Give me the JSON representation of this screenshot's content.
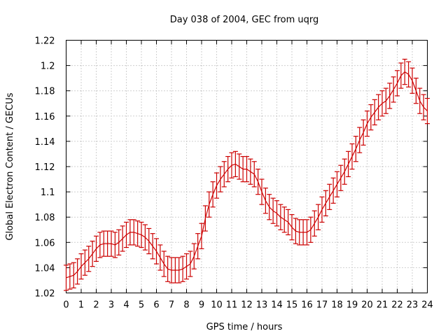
{
  "chart_data": {
    "type": "line",
    "title": "Day 038 of 2004, GEC from uqrg",
    "xlabel": "GPS time / hours",
    "ylabel": "Global Electron Content / GECUs",
    "xlim": [
      0,
      24
    ],
    "ylim": [
      1.02,
      1.22
    ],
    "xticks": [
      "0",
      "1",
      "2",
      "3",
      "4",
      "5",
      "6",
      "7",
      "8",
      "9",
      "10",
      "11",
      "12",
      "13",
      "14",
      "15",
      "16",
      "17",
      "18",
      "19",
      "20",
      "21",
      "22",
      "23",
      "24"
    ],
    "yticks": [
      "1.02",
      "1.04",
      "1.06",
      "1.08",
      "1.1",
      "1.12",
      "1.14",
      "1.16",
      "1.18",
      "1.2",
      "1.22"
    ],
    "grid": true,
    "error_bar": 0.01,
    "color": "#cc0000",
    "series": [
      {
        "x": [
          0,
          0.25,
          0.5,
          0.75,
          1,
          1.25,
          1.5,
          1.75,
          2,
          2.25,
          2.5,
          2.75,
          3,
          3.25,
          3.5,
          3.75,
          4,
          4.25,
          4.5,
          4.75,
          5,
          5.25,
          5.5,
          5.75,
          6,
          6.25,
          6.5,
          6.75,
          7,
          7.25,
          7.5,
          7.75,
          8,
          8.25,
          8.5,
          8.75,
          9,
          9.25,
          9.5,
          9.75,
          10,
          10.25,
          10.5,
          10.75,
          11,
          11.25,
          11.5,
          11.75,
          12,
          12.25,
          12.5,
          12.75,
          13,
          13.25,
          13.5,
          13.75,
          14,
          14.25,
          14.5,
          14.75,
          15,
          15.25,
          15.5,
          15.75,
          16,
          16.25,
          16.5,
          16.75,
          17,
          17.25,
          17.5,
          17.75,
          18,
          18.25,
          18.5,
          18.75,
          19,
          19.25,
          19.5,
          19.75,
          20,
          20.25,
          20.5,
          20.75,
          21,
          21.25,
          21.5,
          21.75,
          22,
          22.25,
          22.5,
          22.75,
          23,
          23.25,
          23.5,
          23.75,
          24
        ],
        "y": [
          1.032,
          1.033,
          1.034,
          1.037,
          1.041,
          1.044,
          1.047,
          1.051,
          1.055,
          1.058,
          1.059,
          1.059,
          1.059,
          1.058,
          1.06,
          1.063,
          1.066,
          1.068,
          1.068,
          1.067,
          1.066,
          1.064,
          1.061,
          1.057,
          1.053,
          1.048,
          1.043,
          1.039,
          1.038,
          1.038,
          1.038,
          1.039,
          1.041,
          1.043,
          1.049,
          1.057,
          1.065,
          1.079,
          1.09,
          1.098,
          1.105,
          1.11,
          1.114,
          1.118,
          1.121,
          1.122,
          1.12,
          1.118,
          1.118,
          1.116,
          1.114,
          1.108,
          1.1,
          1.093,
          1.088,
          1.085,
          1.083,
          1.08,
          1.078,
          1.076,
          1.072,
          1.069,
          1.068,
          1.068,
          1.068,
          1.07,
          1.075,
          1.08,
          1.086,
          1.091,
          1.096,
          1.101,
          1.106,
          1.111,
          1.116,
          1.122,
          1.128,
          1.134,
          1.141,
          1.147,
          1.154,
          1.159,
          1.163,
          1.167,
          1.17,
          1.172,
          1.176,
          1.181,
          1.186,
          1.192,
          1.195,
          1.193,
          1.188,
          1.18,
          1.172,
          1.167,
          1.164
        ]
      }
    ]
  }
}
